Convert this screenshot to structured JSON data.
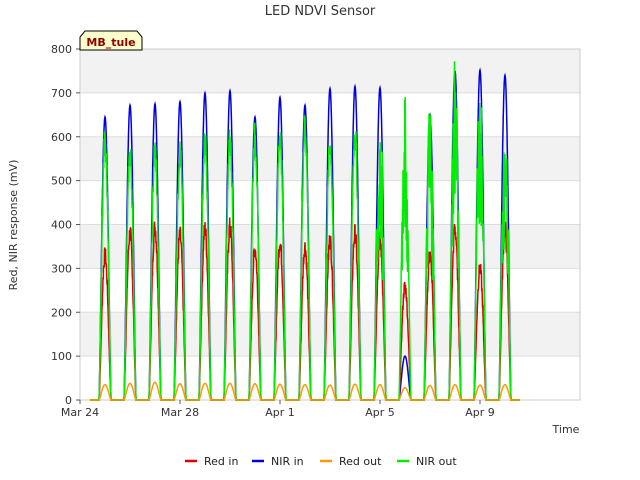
{
  "chart_data": {
    "type": "line",
    "title": "LED NDVI Sensor",
    "xlabel": "Time",
    "ylabel": "Red, NIR response (mV)",
    "badge": "MB_tule",
    "ylim": [
      0,
      800
    ],
    "xlim": [
      0,
      20
    ],
    "x_origin_date": "Mar 24",
    "yticks": [
      0,
      100,
      200,
      300,
      400,
      500,
      600,
      700,
      800
    ],
    "xticks": [
      {
        "day": 0,
        "label": "Mar 24"
      },
      {
        "day": 4,
        "label": "Mar 28"
      },
      {
        "day": 8,
        "label": "Apr 1"
      },
      {
        "day": 12,
        "label": "Apr 5"
      },
      {
        "day": 16,
        "label": "Apr 9"
      }
    ],
    "legend_position": "bottom",
    "grid": true,
    "series": [
      {
        "name": "Red in",
        "color": "#dd0000",
        "peaks": [
          330,
          380,
          395,
          375,
          390,
          395,
          345,
          360,
          350,
          365,
          380,
          365,
          260,
          330,
          390,
          300,
          390
        ]
      },
      {
        "name": "NIR in",
        "color": "#0000dd",
        "peaks": [
          645,
          672,
          675,
          680,
          700,
          705,
          645,
          690,
          672,
          710,
          715,
          712,
          100,
          650,
          750,
          752,
          740
        ]
      },
      {
        "name": "Red out",
        "color": "#ff9900",
        "peaks": [
          35,
          38,
          40,
          37,
          38,
          38,
          37,
          36,
          35,
          34,
          36,
          35,
          28,
          33,
          35,
          34,
          35
        ]
      },
      {
        "name": "NIR out",
        "color": "#00ee00",
        "peaks": [
          590,
          560,
          570,
          565,
          585,
          590,
          600,
          605,
          625,
          585,
          610,
          630,
          615,
          630,
          715,
          685,
          630
        ]
      }
    ],
    "peak_days": [
      1,
      2,
      3,
      4,
      5,
      6,
      7,
      8,
      9,
      10,
      11,
      12,
      13,
      14,
      15,
      16,
      17
    ]
  }
}
